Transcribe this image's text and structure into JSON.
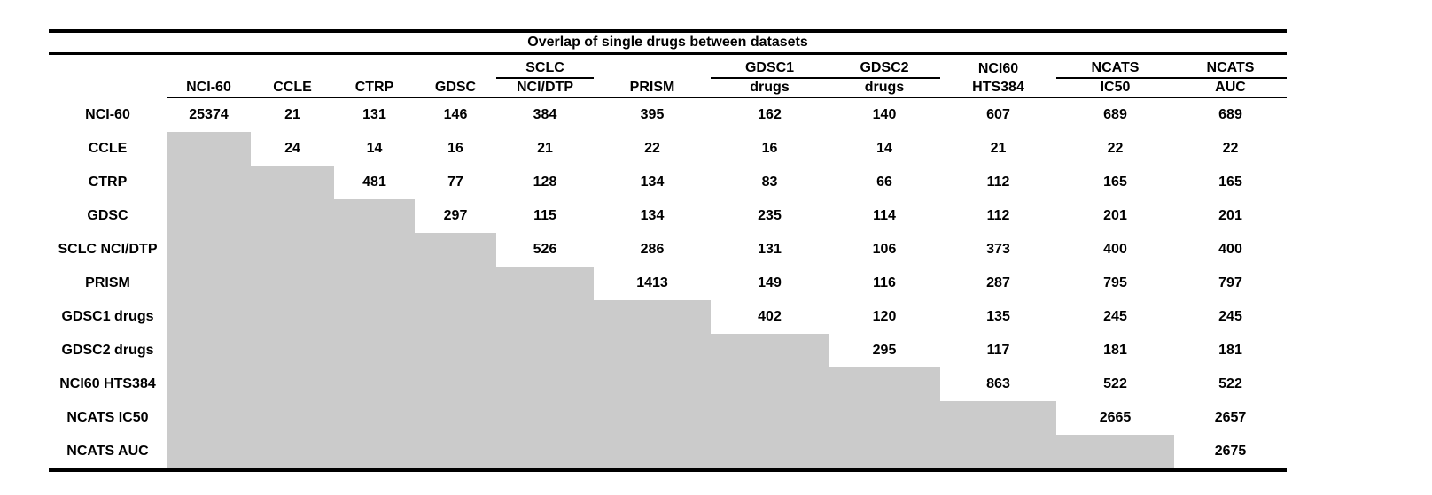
{
  "title": "Overlap of single drugs between datasets",
  "colors": {
    "lower_triangle_fill": "#cbcbcb",
    "rule": "#000000",
    "text": "#000000",
    "background": "#ffffff"
  },
  "columns": [
    {
      "top": "",
      "label": "NCI-60",
      "underline": false
    },
    {
      "top": "",
      "label": "CCLE",
      "underline": false
    },
    {
      "top": "",
      "label": "CTRP",
      "underline": false
    },
    {
      "top": "",
      "label": "GDSC",
      "underline": false
    },
    {
      "top": "SCLC",
      "label": "NCI/DTP",
      "underline": true
    },
    {
      "top": "",
      "label": "PRISM",
      "underline": false
    },
    {
      "top": "GDSC1",
      "label": "drugs",
      "underline": true
    },
    {
      "top": "GDSC2",
      "label": "drugs",
      "underline": true
    },
    {
      "top": "NCI60",
      "label": "HTS384",
      "underline": false
    },
    {
      "top": "NCATS",
      "label": "IC50",
      "underline": true
    },
    {
      "top": "NCATS",
      "label": "AUC",
      "underline": true
    }
  ],
  "rows": [
    {
      "label": "NCI-60",
      "values": [
        25374,
        21,
        131,
        146,
        384,
        395,
        162,
        140,
        607,
        689,
        689
      ]
    },
    {
      "label": "CCLE",
      "values": [
        null,
        24,
        14,
        16,
        21,
        22,
        16,
        14,
        21,
        22,
        22
      ]
    },
    {
      "label": "CTRP",
      "values": [
        null,
        null,
        481,
        77,
        128,
        134,
        83,
        66,
        112,
        165,
        165
      ]
    },
    {
      "label": "GDSC",
      "values": [
        null,
        null,
        null,
        297,
        115,
        134,
        235,
        114,
        112,
        201,
        201
      ]
    },
    {
      "label": "SCLC NCI/DTP",
      "values": [
        null,
        null,
        null,
        null,
        526,
        286,
        131,
        106,
        373,
        400,
        400
      ]
    },
    {
      "label": "PRISM",
      "values": [
        null,
        null,
        null,
        null,
        null,
        1413,
        149,
        116,
        287,
        795,
        797
      ]
    },
    {
      "label": "GDSC1 drugs",
      "values": [
        null,
        null,
        null,
        null,
        null,
        null,
        402,
        120,
        135,
        245,
        245
      ]
    },
    {
      "label": "GDSC2 drugs",
      "values": [
        null,
        null,
        null,
        null,
        null,
        null,
        null,
        295,
        117,
        181,
        181
      ]
    },
    {
      "label": "NCI60 HTS384",
      "values": [
        null,
        null,
        null,
        null,
        null,
        null,
        null,
        null,
        863,
        522,
        522
      ]
    },
    {
      "label": "NCATS IC50",
      "values": [
        null,
        null,
        null,
        null,
        null,
        null,
        null,
        null,
        null,
        2665,
        2657
      ]
    },
    {
      "label": "NCATS AUC",
      "values": [
        null,
        null,
        null,
        null,
        null,
        null,
        null,
        null,
        null,
        null,
        2675
      ]
    }
  ]
}
